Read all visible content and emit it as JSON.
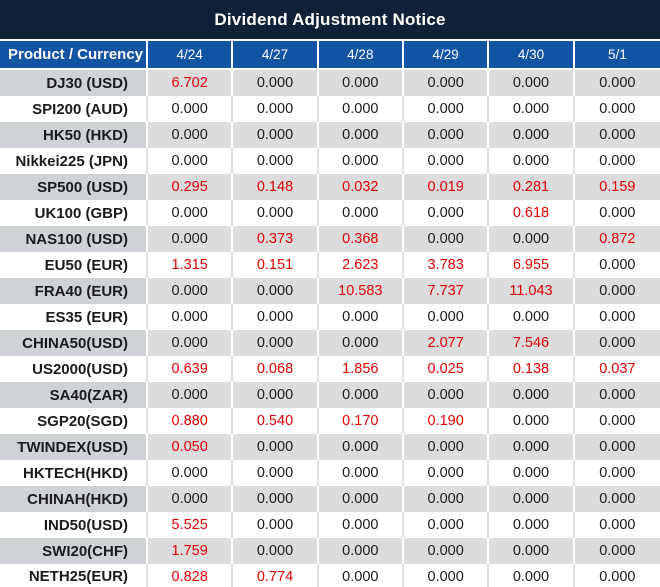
{
  "title": "Dividend Adjustment Notice",
  "columns": [
    "Product / Currency",
    "4/24",
    "4/27",
    "4/28",
    "4/29",
    "4/30",
    "5/1"
  ],
  "colors": {
    "title_bar": "#0e2137",
    "header_blue": "#1254a4",
    "row_gray": "#dcdcdc",
    "product_gray": "#cfd3d8",
    "row_white": "#ffffff",
    "negative_red": "#e00000",
    "text_black": "#1b1b1b",
    "grid_light": "#e0e0e0"
  },
  "rows": [
    {
      "product": "DJ30 (USD)",
      "values": [
        "6.702",
        "0.000",
        "0.000",
        "0.000",
        "0.000",
        "0.000"
      ],
      "red": [
        true,
        false,
        false,
        false,
        false,
        false
      ]
    },
    {
      "product": "SPI200 (AUD)",
      "values": [
        "0.000",
        "0.000",
        "0.000",
        "0.000",
        "0.000",
        "0.000"
      ],
      "red": [
        false,
        false,
        false,
        false,
        false,
        false
      ]
    },
    {
      "product": "HK50 (HKD)",
      "values": [
        "0.000",
        "0.000",
        "0.000",
        "0.000",
        "0.000",
        "0.000"
      ],
      "red": [
        false,
        false,
        false,
        false,
        false,
        false
      ]
    },
    {
      "product": "Nikkei225 (JPN)",
      "values": [
        "0.000",
        "0.000",
        "0.000",
        "0.000",
        "0.000",
        "0.000"
      ],
      "red": [
        false,
        false,
        false,
        false,
        false,
        false
      ]
    },
    {
      "product": "SP500 (USD)",
      "values": [
        "0.295",
        "0.148",
        "0.032",
        "0.019",
        "0.281",
        "0.159"
      ],
      "red": [
        true,
        true,
        true,
        true,
        true,
        true
      ]
    },
    {
      "product": "UK100 (GBP)",
      "values": [
        "0.000",
        "0.000",
        "0.000",
        "0.000",
        "0.618",
        "0.000"
      ],
      "red": [
        false,
        false,
        false,
        false,
        true,
        false
      ]
    },
    {
      "product": "NAS100 (USD)",
      "values": [
        "0.000",
        "0.373",
        "0.368",
        "0.000",
        "0.000",
        "0.872"
      ],
      "red": [
        false,
        true,
        true,
        false,
        false,
        true
      ]
    },
    {
      "product": "EU50 (EUR)",
      "values": [
        "1.315",
        "0.151",
        "2.623",
        "3.783",
        "6.955",
        "0.000"
      ],
      "red": [
        true,
        true,
        true,
        true,
        true,
        false
      ]
    },
    {
      "product": "FRA40 (EUR)",
      "values": [
        "0.000",
        "0.000",
        "10.583",
        "7.737",
        "11.043",
        "0.000"
      ],
      "red": [
        false,
        false,
        true,
        true,
        true,
        false
      ]
    },
    {
      "product": "ES35 (EUR)",
      "values": [
        "0.000",
        "0.000",
        "0.000",
        "0.000",
        "0.000",
        "0.000"
      ],
      "red": [
        false,
        false,
        false,
        false,
        false,
        false
      ]
    },
    {
      "product": "CHINA50(USD)",
      "values": [
        "0.000",
        "0.000",
        "0.000",
        "2.077",
        "7.546",
        "0.000"
      ],
      "red": [
        false,
        false,
        false,
        true,
        true,
        false
      ]
    },
    {
      "product": "US2000(USD)",
      "values": [
        "0.639",
        "0.068",
        "1.856",
        "0.025",
        "0.138",
        "0.037"
      ],
      "red": [
        true,
        true,
        true,
        true,
        true,
        true
      ]
    },
    {
      "product": "SA40(ZAR)",
      "values": [
        "0.000",
        "0.000",
        "0.000",
        "0.000",
        "0.000",
        "0.000"
      ],
      "red": [
        false,
        false,
        false,
        false,
        false,
        false
      ]
    },
    {
      "product": "SGP20(SGD)",
      "values": [
        "0.880",
        "0.540",
        "0.170",
        "0.190",
        "0.000",
        "0.000"
      ],
      "red": [
        true,
        true,
        true,
        true,
        false,
        false
      ]
    },
    {
      "product": "TWINDEX(USD)",
      "values": [
        "0.050",
        "0.000",
        "0.000",
        "0.000",
        "0.000",
        "0.000"
      ],
      "red": [
        true,
        false,
        false,
        false,
        false,
        false
      ]
    },
    {
      "product": "HKTECH(HKD)",
      "values": [
        "0.000",
        "0.000",
        "0.000",
        "0.000",
        "0.000",
        "0.000"
      ],
      "red": [
        false,
        false,
        false,
        false,
        false,
        false
      ]
    },
    {
      "product": "CHINAH(HKD)",
      "values": [
        "0.000",
        "0.000",
        "0.000",
        "0.000",
        "0.000",
        "0.000"
      ],
      "red": [
        false,
        false,
        false,
        false,
        false,
        false
      ]
    },
    {
      "product": "IND50(USD)",
      "values": [
        "5.525",
        "0.000",
        "0.000",
        "0.000",
        "0.000",
        "0.000"
      ],
      "red": [
        true,
        false,
        false,
        false,
        false,
        false
      ]
    },
    {
      "product": "SWI20(CHF)",
      "values": [
        "1.759",
        "0.000",
        "0.000",
        "0.000",
        "0.000",
        "0.000"
      ],
      "red": [
        true,
        false,
        false,
        false,
        false,
        false
      ]
    },
    {
      "product": "NETH25(EUR)",
      "values": [
        "0.828",
        "0.774",
        "0.000",
        "0.000",
        "0.000",
        "0.000"
      ],
      "red": [
        true,
        true,
        false,
        false,
        false,
        false
      ]
    }
  ]
}
